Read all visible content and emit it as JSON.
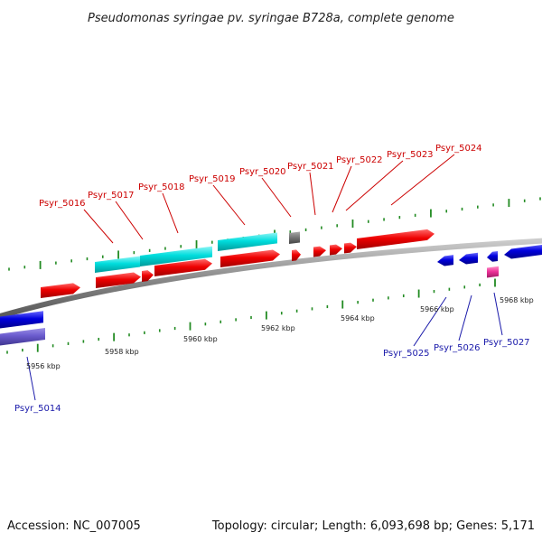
{
  "title": "Pseudomonas syringae pv. syringae B728a, complete genome",
  "footer": {
    "accession": "Accession: NC_007005",
    "summary": "Topology: circular; Length: 6,093,698 bp; Genes: 5,171"
  },
  "scale_labels": [
    "5956 kbp",
    "5958 kbp",
    "5960 kbp",
    "5962 kbp",
    "5964 kbp",
    "5966 kbp",
    "5968 kbp"
  ],
  "gene_labels": {
    "forward": [
      "Psyr_5016",
      "Psyr_5017",
      "Psyr_5018",
      "Psyr_5019",
      "Psyr_5020",
      "Psyr_5021",
      "Psyr_5022",
      "Psyr_5023",
      "Psyr_5024"
    ],
    "reverse": [
      "Psyr_5014",
      "Psyr_5025",
      "Psyr_5026",
      "Psyr_5027"
    ]
  },
  "colors": {
    "forward_cds": "#ee0000",
    "reverse_cds": "#0000dd",
    "forward_related": "#00dddd",
    "reverse_related": "#6a5acd",
    "trna": "#ee3399",
    "other": "#777777",
    "backbone": "#888888",
    "tick": "#228b22",
    "forward_label": "#cc0000",
    "reverse_label": "#1a1aaa"
  }
}
